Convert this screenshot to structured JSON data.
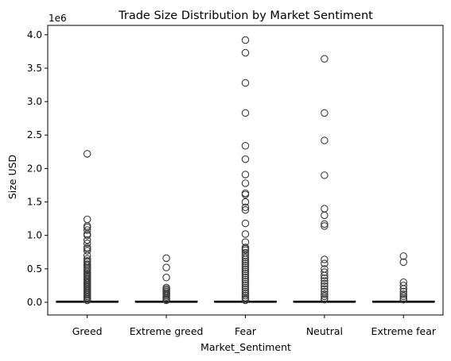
{
  "chart_data": {
    "type": "box",
    "title": "Trade Size Distribution by Market Sentiment",
    "xlabel": "Market_Sentiment",
    "ylabel": "Size USD",
    "y_offset_label": "1e6",
    "ylim": [
      -0.19,
      4.14
    ],
    "y_ticks": [
      0.0,
      0.5,
      1.0,
      1.5,
      2.0,
      2.5,
      3.0,
      3.5,
      4.0
    ],
    "y_tick_labels": [
      "0.0",
      "0.5",
      "1.0",
      "1.5",
      "2.0",
      "2.5",
      "3.0",
      "3.5",
      "4.0"
    ],
    "grid": false,
    "box_color": "#000000",
    "categories": [
      "Greed",
      "Extreme greed",
      "Fear",
      "Neutral",
      "Extreme fear"
    ],
    "series": [
      {
        "category": "Greed",
        "q1": 0.0,
        "median": 0.0,
        "q3": 0.01,
        "whisker_low": 0.0,
        "whisker_high": 0.02,
        "outliers": [
          2.22,
          1.24,
          1.14,
          1.12,
          1.08,
          1.02,
          1.0,
          0.93,
          0.88,
          0.82,
          0.8,
          0.77,
          0.7,
          0.65,
          0.62,
          0.6,
          0.57,
          0.55,
          0.52,
          0.5,
          0.48,
          0.45,
          0.43,
          0.41,
          0.39,
          0.37,
          0.35,
          0.33,
          0.31,
          0.29,
          0.27,
          0.25,
          0.23,
          0.21,
          0.19,
          0.17,
          0.15,
          0.13,
          0.11,
          0.09,
          0.07,
          0.05,
          0.03
        ]
      },
      {
        "category": "Extreme greed",
        "q1": 0.0,
        "median": 0.0,
        "q3": 0.01,
        "whisker_low": 0.0,
        "whisker_high": 0.02,
        "outliers": [
          0.66,
          0.52,
          0.37,
          0.22,
          0.2,
          0.18,
          0.16,
          0.14,
          0.12,
          0.1,
          0.08,
          0.06,
          0.04,
          0.03
        ]
      },
      {
        "category": "Fear",
        "q1": 0.0,
        "median": 0.0,
        "q3": 0.01,
        "whisker_low": 0.0,
        "whisker_high": 0.02,
        "outliers": [
          3.92,
          3.73,
          3.28,
          2.83,
          2.34,
          2.14,
          1.91,
          1.78,
          1.63,
          1.61,
          1.5,
          1.42,
          1.38,
          1.18,
          1.02,
          0.9,
          0.82,
          0.8,
          0.78,
          0.74,
          0.7,
          0.67,
          0.64,
          0.61,
          0.58,
          0.55,
          0.52,
          0.49,
          0.46,
          0.43,
          0.4,
          0.37,
          0.34,
          0.31,
          0.28,
          0.25,
          0.22,
          0.19,
          0.16,
          0.13,
          0.1,
          0.07,
          0.05,
          0.03
        ]
      },
      {
        "category": "Neutral",
        "q1": 0.0,
        "median": 0.0,
        "q3": 0.01,
        "whisker_low": 0.0,
        "whisker_high": 0.02,
        "outliers": [
          3.64,
          2.83,
          2.42,
          1.9,
          1.4,
          1.3,
          1.17,
          1.14,
          0.64,
          0.58,
          0.5,
          0.45,
          0.4,
          0.36,
          0.32,
          0.28,
          0.24,
          0.2,
          0.16,
          0.12,
          0.09,
          0.06,
          0.04
        ]
      },
      {
        "category": "Extreme fear",
        "q1": 0.0,
        "median": 0.0,
        "q3": 0.01,
        "whisker_low": 0.0,
        "whisker_high": 0.02,
        "outliers": [
          0.69,
          0.6,
          0.3,
          0.25,
          0.2,
          0.16,
          0.12,
          0.09,
          0.06,
          0.04
        ]
      }
    ]
  }
}
